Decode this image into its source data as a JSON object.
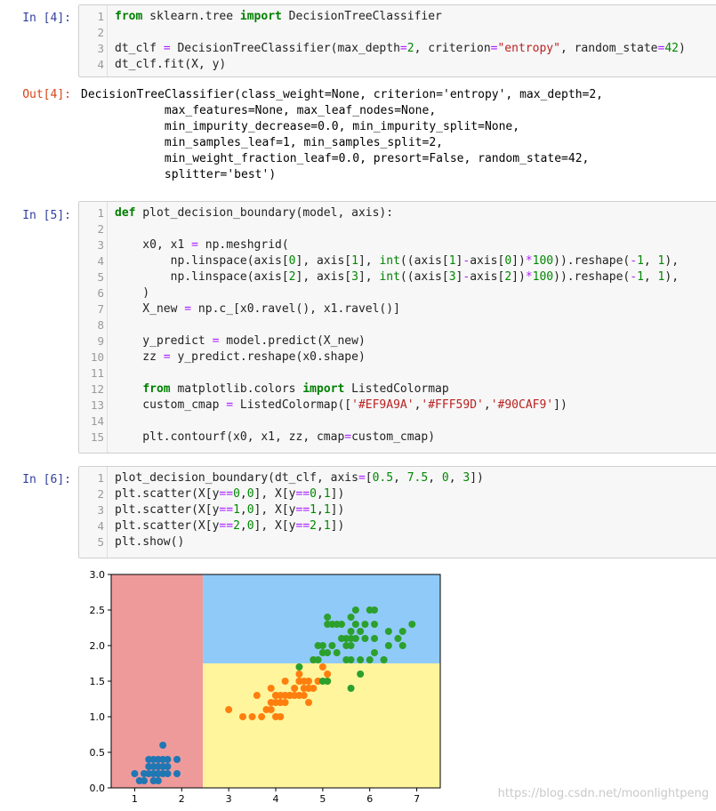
{
  "cells": [
    {
      "prompt": "In [4]:",
      "line_numbers": [
        "1",
        "2",
        "3",
        "4"
      ],
      "code": [
        "from sklearn.tree import DecisionTreeClassifier",
        "",
        "dt_clf = DecisionTreeClassifier(max_depth=2, criterion=\"entropy\", random_state=42)",
        "dt_clf.fit(X, y)"
      ]
    },
    {
      "prompt": "In [5]:",
      "line_numbers": [
        "1",
        "2",
        "3",
        "4",
        "5",
        "6",
        "7",
        "8",
        "9",
        "10",
        "11",
        "12",
        "13",
        "14",
        "15"
      ],
      "code": [
        "def plot_decision_boundary(model, axis):",
        "",
        "    x0, x1 = np.meshgrid(",
        "        np.linspace(axis[0], axis[1], int((axis[1]-axis[0])*100)).reshape(-1, 1),",
        "        np.linspace(axis[2], axis[3], int((axis[3]-axis[2])*100)).reshape(-1, 1),",
        "    )",
        "    X_new = np.c_[x0.ravel(), x1.ravel()]",
        "",
        "    y_predict = model.predict(X_new)",
        "    zz = y_predict.reshape(x0.shape)",
        "",
        "    from matplotlib.colors import ListedColormap",
        "    custom_cmap = ListedColormap(['#EF9A9A','#FFF59D','#90CAF9'])",
        "",
        "    plt.contourf(x0, x1, zz, cmap=custom_cmap)"
      ]
    },
    {
      "prompt": "In [6]:",
      "line_numbers": [
        "1",
        "2",
        "3",
        "4",
        "5"
      ],
      "code": [
        "plot_decision_boundary(dt_clf, axis=[0.5, 7.5, 0, 3])",
        "plt.scatter(X[y==0,0], X[y==0,1])",
        "plt.scatter(X[y==1,0], X[y==1,1])",
        "plt.scatter(X[y==2,0], X[y==2,1])",
        "plt.show()"
      ]
    }
  ],
  "output": {
    "prompt": "Out[4]:",
    "lines": [
      "DecisionTreeClassifier(class_weight=None, criterion='entropy', max_depth=2,",
      "            max_features=None, max_leaf_nodes=None,",
      "            min_impurity_decrease=0.0, min_impurity_split=None,",
      "            min_samples_leaf=1, min_samples_split=2,",
      "            min_weight_fraction_leaf=0.0, presort=False, random_state=42,",
      "            splitter='best')"
    ]
  },
  "watermark": "https://blog.csdn.net/moonlightpeng",
  "chart_data": {
    "type": "scatter",
    "xlim": [
      0.5,
      7.5
    ],
    "ylim": [
      0,
      3
    ],
    "xticks": [
      "1",
      "2",
      "3",
      "4",
      "5",
      "6",
      "7"
    ],
    "yticks": [
      "0.0",
      "0.5",
      "1.0",
      "1.5",
      "2.0",
      "2.5",
      "3.0"
    ],
    "regions": [
      {
        "x": [
          0.5,
          2.45
        ],
        "y": [
          0,
          3
        ],
        "color": "#EF9A9A"
      },
      {
        "x": [
          2.45,
          7.5
        ],
        "y": [
          0,
          1.75
        ],
        "color": "#FFF59D"
      },
      {
        "x": [
          2.45,
          7.5
        ],
        "y": [
          1.75,
          3
        ],
        "color": "#90CAF9"
      }
    ],
    "series": [
      {
        "color": "#1f77b4",
        "points": [
          [
            1.4,
            0.2
          ],
          [
            1.3,
            0.2
          ],
          [
            1.5,
            0.2
          ],
          [
            1.7,
            0.4
          ],
          [
            1.4,
            0.3
          ],
          [
            1.5,
            0.1
          ],
          [
            1.6,
            0.2
          ],
          [
            1.1,
            0.1
          ],
          [
            1.2,
            0.2
          ],
          [
            1.3,
            0.4
          ],
          [
            1.7,
            0.3
          ],
          [
            1.5,
            0.4
          ],
          [
            1.0,
            0.2
          ],
          [
            1.9,
            0.2
          ],
          [
            1.6,
            0.4
          ],
          [
            1.4,
            0.1
          ],
          [
            1.9,
            0.4
          ],
          [
            1.6,
            0.6
          ],
          [
            1.3,
            0.3
          ],
          [
            1.5,
            0.3
          ],
          [
            1.6,
            0.3
          ],
          [
            1.2,
            0.1
          ],
          [
            1.4,
            0.4
          ],
          [
            1.7,
            0.2
          ],
          [
            1.5,
            0.2
          ]
        ]
      },
      {
        "color": "#ff7f0e",
        "points": [
          [
            4.7,
            1.4
          ],
          [
            4.5,
            1.5
          ],
          [
            4.9,
            1.5
          ],
          [
            4.0,
            1.3
          ],
          [
            4.6,
            1.5
          ],
          [
            3.3,
            1.0
          ],
          [
            4.6,
            1.3
          ],
          [
            3.9,
            1.4
          ],
          [
            3.5,
            1.0
          ],
          [
            4.2,
            1.5
          ],
          [
            4.0,
            1.0
          ],
          [
            4.7,
            1.4
          ],
          [
            3.6,
            1.3
          ],
          [
            4.4,
            1.4
          ],
          [
            4.1,
            1.0
          ],
          [
            4.5,
            1.5
          ],
          [
            3.9,
            1.1
          ],
          [
            4.8,
            1.8
          ],
          [
            4.0,
            1.3
          ],
          [
            4.9,
            1.5
          ],
          [
            4.7,
            1.2
          ],
          [
            4.3,
            1.3
          ],
          [
            4.4,
            1.4
          ],
          [
            5.0,
            1.7
          ],
          [
            3.8,
            1.1
          ],
          [
            3.7,
            1.0
          ],
          [
            5.1,
            1.6
          ],
          [
            4.5,
            1.6
          ],
          [
            4.7,
            1.5
          ],
          [
            4.4,
            1.3
          ],
          [
            4.1,
            1.3
          ],
          [
            4.6,
            1.4
          ],
          [
            3.0,
            1.1
          ],
          [
            4.2,
            1.2
          ],
          [
            4.3,
            1.3
          ],
          [
            4.2,
            1.3
          ],
          [
            3.9,
            1.2
          ],
          [
            4.5,
            1.3
          ],
          [
            4.8,
            1.4
          ],
          [
            5.1,
            1.5
          ],
          [
            4.1,
            1.2
          ],
          [
            4.0,
            1.2
          ]
        ]
      },
      {
        "color": "#2ca02c",
        "points": [
          [
            6.0,
            2.5
          ],
          [
            5.1,
            1.9
          ],
          [
            5.9,
            2.1
          ],
          [
            5.6,
            1.8
          ],
          [
            5.8,
            2.2
          ],
          [
            6.6,
            2.1
          ],
          [
            4.5,
            1.7
          ],
          [
            6.3,
            1.8
          ],
          [
            5.8,
            1.8
          ],
          [
            6.1,
            2.5
          ],
          [
            5.3,
            1.9
          ],
          [
            5.5,
            2.1
          ],
          [
            5.0,
            2.0
          ],
          [
            5.1,
            2.4
          ],
          [
            5.3,
            2.3
          ],
          [
            6.7,
            2.2
          ],
          [
            6.9,
            2.3
          ],
          [
            5.0,
            1.5
          ],
          [
            5.7,
            2.3
          ],
          [
            4.9,
            2.0
          ],
          [
            6.7,
            2.0
          ],
          [
            4.9,
            1.8
          ],
          [
            5.7,
            2.1
          ],
          [
            6.0,
            1.8
          ],
          [
            4.8,
            1.8
          ],
          [
            5.6,
            2.1
          ],
          [
            5.8,
            1.6
          ],
          [
            6.4,
            2.0
          ],
          [
            5.6,
            2.2
          ],
          [
            5.1,
            1.5
          ],
          [
            5.6,
            1.4
          ],
          [
            6.1,
            2.3
          ],
          [
            5.5,
            1.8
          ],
          [
            5.4,
            2.1
          ],
          [
            5.6,
            2.4
          ],
          [
            5.1,
            2.3
          ],
          [
            5.9,
            2.3
          ],
          [
            5.7,
            2.5
          ],
          [
            5.2,
            2.3
          ],
          [
            5.4,
            2.3
          ],
          [
            5.2,
            2.0
          ],
          [
            5.0,
            1.9
          ],
          [
            6.1,
            1.9
          ],
          [
            6.4,
            2.2
          ],
          [
            6.3,
            1.8
          ],
          [
            6.1,
            2.1
          ],
          [
            5.5,
            2.0
          ],
          [
            5.6,
            2.0
          ]
        ]
      }
    ]
  }
}
